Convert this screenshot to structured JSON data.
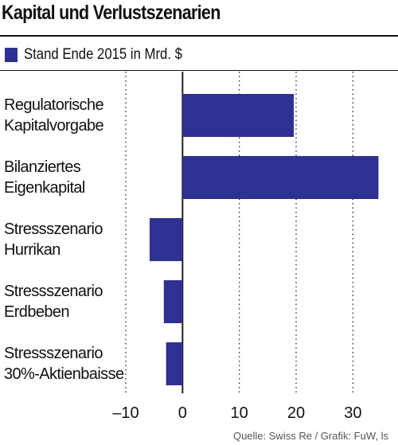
{
  "header": {
    "title": "Kapital und Verlustszenarien"
  },
  "legend": {
    "label": "Stand Ende 2015 in Mrd. $"
  },
  "colors": {
    "bar": "#2e3192",
    "grid": "#222222",
    "text": "#111111"
  },
  "chart_data": {
    "type": "bar",
    "orientation": "horizontal",
    "title": "Kapital und Verlustszenarien",
    "categories": [
      [
        "Regulatorische",
        "Kapitalvorgabe"
      ],
      [
        "Bilanziertes",
        "Eigenkapital"
      ],
      [
        "Stressszenario",
        "Hurrikan"
      ],
      [
        "Stressszenario",
        "Erdbeben"
      ],
      [
        "Stressszenario",
        "30%-Aktienbaisse"
      ]
    ],
    "series": [
      {
        "name": "Stand Ende 2015 in Mrd. $",
        "values": [
          19.6,
          34.5,
          -5.8,
          -3.3,
          -2.9
        ]
      }
    ],
    "xlim": [
      -10,
      35
    ],
    "ticks": [
      -10,
      0,
      10,
      20,
      30
    ],
    "tick_labels": [
      "–10",
      "0",
      "10",
      "20",
      "30"
    ],
    "grid": "vertical dotted",
    "legend_position": "top-left"
  },
  "source": "Quelle: Swiss Re / Grafik: FuW, ls"
}
